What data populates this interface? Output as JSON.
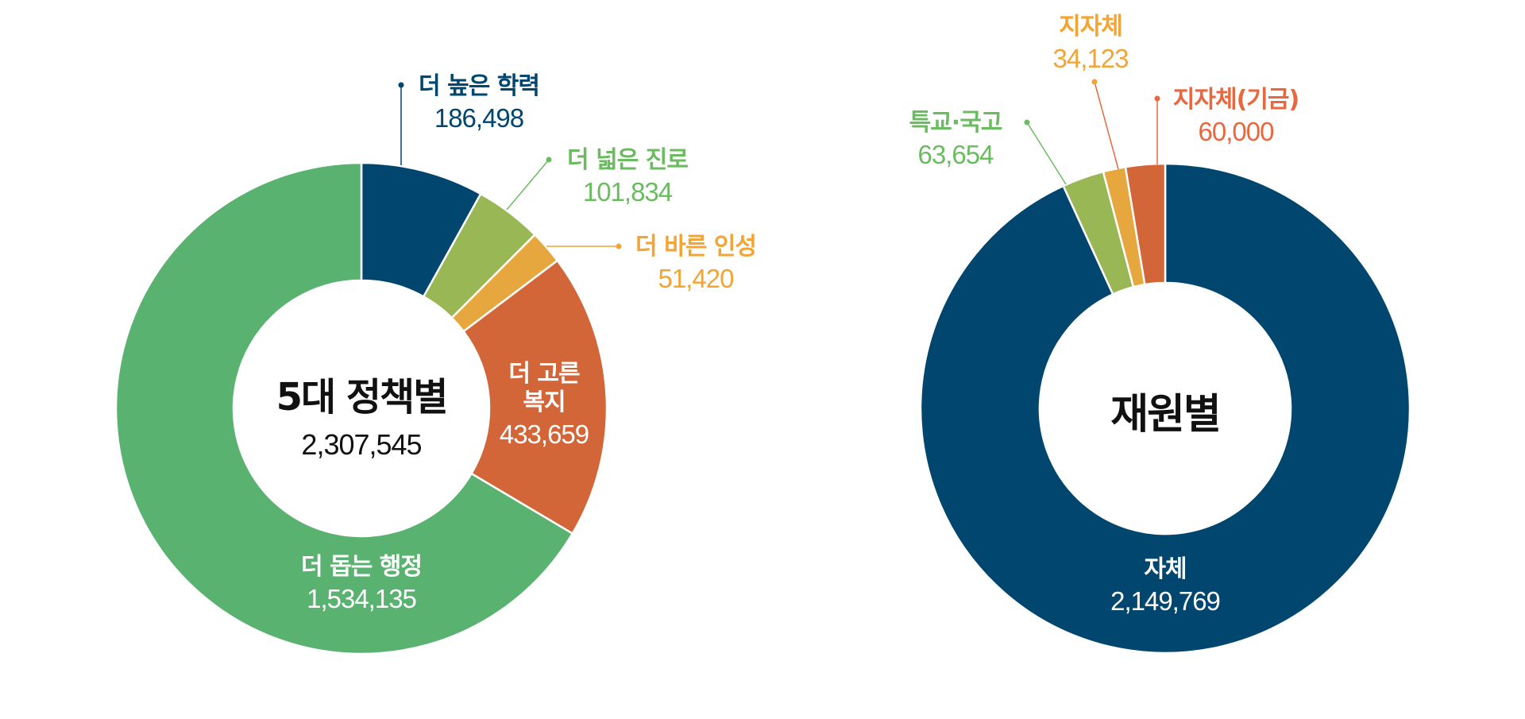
{
  "chart_data": [
    {
      "type": "pie",
      "variant": "donut",
      "title": "5대 정책별",
      "total": "2,307,545",
      "categories": [
        "더 높은 학력",
        "더 넓은 진로",
        "더 바른 인성",
        "더 고른 복지",
        "더 돕는 행정"
      ],
      "values": [
        186498,
        101834,
        51420,
        433659,
        1534135
      ],
      "value_labels": [
        "186,498",
        "101,834",
        "51,420",
        "433,659",
        "1,534,135"
      ],
      "colors": [
        "#00466f",
        "#9ab755",
        "#e6a73f",
        "#d36639",
        "#5ab270"
      ],
      "label_colors": [
        "#00466f",
        "#6bbb61",
        "#f2a434",
        "#ffffff",
        "#ffffff"
      ],
      "start_angle": 0,
      "direction": "clockwise"
    },
    {
      "type": "pie",
      "variant": "donut",
      "title": "재원별",
      "categories": [
        "자체",
        "특교·국고",
        "지자체",
        "지자체(기금)"
      ],
      "values": [
        2149769,
        63654,
        34123,
        60000
      ],
      "value_labels": [
        "2,149,769",
        "63,654",
        "34,123",
        "60,000"
      ],
      "colors": [
        "#00466f",
        "#9ab755",
        "#e6a73f",
        "#d36639"
      ],
      "label_colors": [
        "#ffffff",
        "#6bbb61",
        "#f2a434",
        "#e8673e"
      ],
      "start_angle": 0,
      "direction": "clockwise"
    }
  ],
  "left": {
    "center_title": "5대 정책별",
    "center_value": "2,307,545",
    "labels": [
      {
        "title": "더 높은 학력",
        "value": "186,498"
      },
      {
        "title": "더 넓은 진로",
        "value": "101,834"
      },
      {
        "title": "더 바른 인성",
        "value": "51,420"
      },
      {
        "title": "더 고른\n복지",
        "title_line1": "더 고른",
        "title_line2": "복지",
        "value": "433,659"
      },
      {
        "title": "더 돕는 행정",
        "value": "1,534,135"
      }
    ]
  },
  "right": {
    "center_title": "재원별",
    "labels": [
      {
        "title": "자체",
        "value": "2,149,769"
      },
      {
        "title": "특교·국고",
        "value": "63,654"
      },
      {
        "title": "지자체",
        "value": "34,123"
      },
      {
        "title": "지자체(기금)",
        "value": "60,000"
      }
    ]
  }
}
